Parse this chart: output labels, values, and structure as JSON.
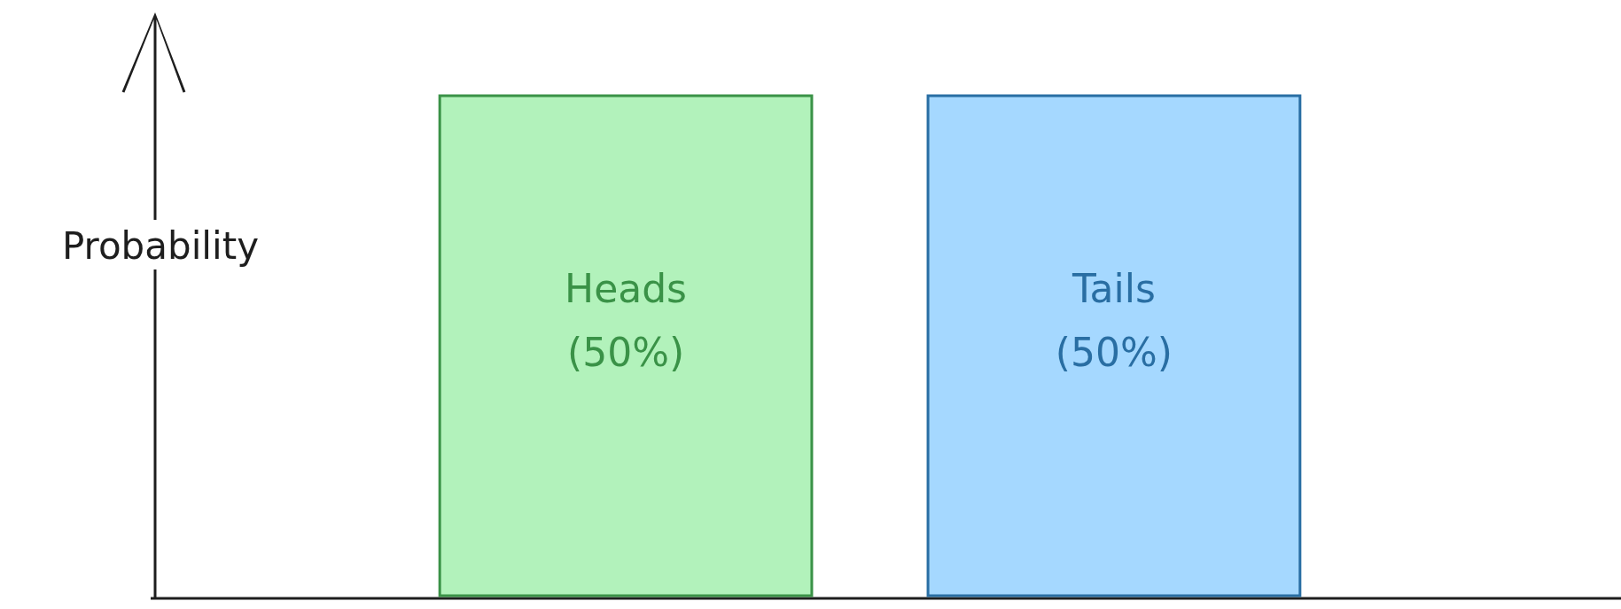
{
  "chart_data": {
    "type": "bar",
    "ylabel": "Probability",
    "categories": [
      "Heads",
      "Tails"
    ],
    "values": [
      50,
      50
    ],
    "value_labels": [
      "(50%)",
      "(50%)"
    ],
    "colors": [
      "#b2f2bb",
      "#a5d8ff"
    ]
  }
}
